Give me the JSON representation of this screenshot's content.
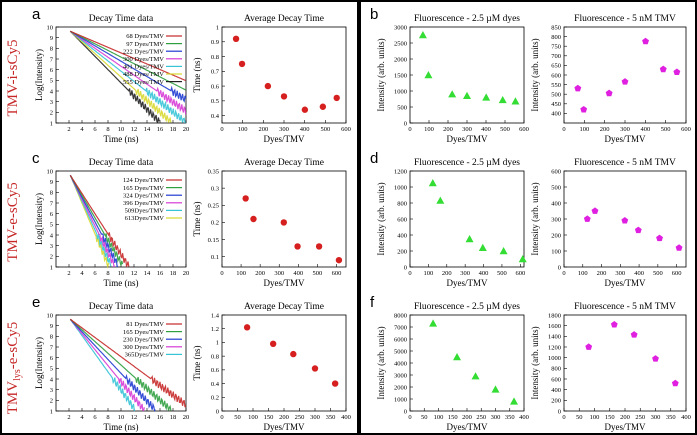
{
  "figure": {
    "row_labels": [
      {
        "main": "TMV-i-sCy5",
        "sub": ""
      },
      {
        "main": "TMV-e-sCy5",
        "sub": ""
      },
      {
        "main": "TMV",
        "sub": "lys",
        "tail": "-e-sCy5"
      }
    ],
    "panel_letters": [
      "a",
      "b",
      "c",
      "d",
      "e",
      "f"
    ]
  },
  "chart_data": [
    {
      "id": "a-decay",
      "type": "line",
      "title": "Decay Time data",
      "xlabel": "Time (ns)",
      "ylabel": "Log(Intensity)",
      "xlim": [
        0,
        20
      ],
      "ylim": [
        1,
        10
      ],
      "xticks": [
        2,
        4,
        6,
        8,
        10,
        12,
        14,
        16,
        18,
        20
      ],
      "yticks": [
        1,
        2,
        3,
        4,
        5,
        6,
        7,
        8,
        9,
        10
      ],
      "series": [
        {
          "name": "68 Dyes/TMV",
          "color": "#c62828",
          "decay_rate": 0.26
        },
        {
          "name": "97 Dyes/TMV",
          "color": "#2e9e3e",
          "decay_rate": 0.31
        },
        {
          "name": "222 Dyes/TMV",
          "color": "#1f3bd1",
          "decay_rate": 0.36
        },
        {
          "name": "300 Dyes/TMV",
          "color": "#d63bd6",
          "decay_rate": 0.42
        },
        {
          "name": "401 Dyes/TMV",
          "color": "#35c3d6",
          "decay_rate": 0.48
        },
        {
          "name": "488 Dyes/TMV",
          "color": "#d8d830",
          "decay_rate": 0.55
        },
        {
          "name": "555 Dyes/TMV",
          "color": "#222222",
          "decay_rate": 0.62
        }
      ]
    },
    {
      "id": "a-avg",
      "type": "scatter",
      "title": "Average Decay Time",
      "xlabel": "Dyes/TMV",
      "ylabel": "Time (ns)",
      "xlim": [
        0,
        600
      ],
      "ylim": [
        0.35,
        1.0
      ],
      "xticks": [
        0,
        100,
        200,
        300,
        400,
        500,
        600
      ],
      "yticks": [
        0.4,
        0.5,
        0.6,
        0.7,
        0.8,
        0.9,
        1
      ],
      "marker": "circle",
      "color": "#d62020",
      "x": [
        68,
        97,
        222,
        300,
        401,
        488,
        555
      ],
      "y": [
        0.92,
        0.75,
        0.6,
        0.53,
        0.44,
        0.46,
        0.52
      ]
    },
    {
      "id": "b-25",
      "type": "scatter",
      "title": "Fluorescence - 2.5 µM dyes",
      "xlabel": "Dyes/TMV",
      "ylabel": "Intensity (arb. units)",
      "xlim": [
        0,
        600
      ],
      "ylim": [
        0,
        3000
      ],
      "xticks": [
        0,
        100,
        200,
        300,
        400,
        500,
        600
      ],
      "yticks": [
        0,
        500,
        1000,
        1500,
        2000,
        2500,
        3000
      ],
      "marker": "triangle",
      "color": "#33dd33",
      "x": [
        68,
        97,
        222,
        300,
        401,
        488,
        555
      ],
      "y": [
        2750,
        1500,
        900,
        850,
        800,
        720,
        680
      ]
    },
    {
      "id": "b-5n",
      "type": "scatter",
      "title": "Fluorescence - 5 nM TMV",
      "xlabel": "Dyes/TMV",
      "ylabel": "Intensity (arb. units)",
      "xlim": [
        0,
        600
      ],
      "ylim": [
        350,
        850
      ],
      "xticks": [
        0,
        100,
        200,
        300,
        400,
        500,
        600
      ],
      "yticks": [
        400,
        450,
        500,
        550,
        600,
        650,
        700,
        750,
        800,
        850
      ],
      "marker": "pentagon",
      "color": "#e020e0",
      "x": [
        68,
        97,
        222,
        300,
        401,
        488,
        555
      ],
      "y": [
        530,
        420,
        505,
        565,
        775,
        630,
        615
      ]
    },
    {
      "id": "c-decay",
      "type": "line",
      "title": "Decay Time data",
      "xlabel": "Time (ns)",
      "ylabel": "Log(Intensity)",
      "xlim": [
        0,
        20
      ],
      "ylim": [
        1,
        10
      ],
      "xticks": [
        2,
        4,
        6,
        8,
        10,
        12,
        14,
        16,
        18,
        20
      ],
      "yticks": [
        1,
        2,
        3,
        4,
        5,
        6,
        7,
        8,
        9,
        10
      ],
      "series": [
        {
          "name": "124 Dyes/TMV",
          "color": "#c62828",
          "decay_rate": 0.95
        },
        {
          "name": "165 Dyes/TMV",
          "color": "#2e9e3e",
          "decay_rate": 1.05
        },
        {
          "name": "324 Dyes/TMV",
          "color": "#1f3bd1",
          "decay_rate": 1.15
        },
        {
          "name": "396 Dyes/TMV",
          "color": "#d63bd6",
          "decay_rate": 1.25
        },
        {
          "name": "509Dyes/TMV",
          "color": "#35c3d6",
          "decay_rate": 1.35
        },
        {
          "name": "613Dyes/TMV",
          "color": "#d8d830",
          "decay_rate": 1.45
        }
      ]
    },
    {
      "id": "c-avg",
      "type": "scatter",
      "title": "Average Decay Time",
      "xlabel": "Dyes/TMV",
      "ylabel": "Time (ns)",
      "xlim": [
        0,
        650
      ],
      "ylim": [
        0.07,
        0.35
      ],
      "xticks": [
        0,
        100,
        200,
        300,
        400,
        500,
        600
      ],
      "yticks": [
        0.1,
        0.15,
        0.2,
        0.25,
        0.3,
        0.35
      ],
      "marker": "circle",
      "color": "#d62020",
      "x": [
        124,
        165,
        324,
        396,
        509,
        613
      ],
      "y": [
        0.27,
        0.21,
        0.2,
        0.13,
        0.13,
        0.09
      ]
    },
    {
      "id": "d-25",
      "type": "scatter",
      "title": "Fluorescence - 2.5 µM dyes",
      "xlabel": "Dyes/TMV",
      "ylabel": "Intensity (arb. units)",
      "xlim": [
        0,
        620
      ],
      "ylim": [
        0,
        1200
      ],
      "xticks": [
        0,
        100,
        200,
        300,
        400,
        500,
        600
      ],
      "yticks": [
        0,
        200,
        400,
        600,
        800,
        1000,
        1200
      ],
      "marker": "triangle",
      "color": "#33dd33",
      "x": [
        124,
        165,
        324,
        396,
        509,
        613
      ],
      "y": [
        1050,
        830,
        350,
        240,
        200,
        100
      ]
    },
    {
      "id": "d-5n",
      "type": "scatter",
      "title": "Fluorescence - 5 nM TMV",
      "xlabel": "Dyes/TMV",
      "ylabel": "Intensity (arb. units)",
      "xlim": [
        0,
        650
      ],
      "ylim": [
        0,
        600
      ],
      "xticks": [
        0,
        100,
        200,
        300,
        400,
        500,
        600
      ],
      "yticks": [
        0,
        100,
        200,
        300,
        400,
        500,
        600
      ],
      "marker": "pentagon",
      "color": "#e020e0",
      "x": [
        124,
        165,
        324,
        396,
        509,
        613
      ],
      "y": [
        300,
        350,
        290,
        230,
        180,
        120
      ]
    },
    {
      "id": "e-decay",
      "type": "line",
      "title": "Decay Time data",
      "xlabel": "Time (ns)",
      "ylabel": "Log(Intensity)",
      "xlim": [
        0,
        20
      ],
      "ylim": [
        1,
        10
      ],
      "xticks": [
        2,
        4,
        6,
        8,
        10,
        12,
        14,
        16,
        18,
        20
      ],
      "yticks": [
        1,
        2,
        3,
        4,
        5,
        6,
        7,
        8,
        9,
        10
      ],
      "series": [
        {
          "name": "81 Dyes/TMV",
          "color": "#c62828",
          "decay_rate": 0.45
        },
        {
          "name": "165 Dyes/TMV",
          "color": "#2e9e3e",
          "decay_rate": 0.55
        },
        {
          "name": "230 Dyes/TMV",
          "color": "#1f3bd1",
          "decay_rate": 0.65
        },
        {
          "name": "300 Dyes/TMV",
          "color": "#d63bd6",
          "decay_rate": 0.75
        },
        {
          "name": "365Dyes/TMV",
          "color": "#35c3d6",
          "decay_rate": 0.85
        }
      ]
    },
    {
      "id": "e-avg",
      "type": "scatter",
      "title": "Average Decay Time",
      "xlabel": "Dyes/TMV",
      "ylabel": "Time (ns)",
      "xlim": [
        0,
        400
      ],
      "ylim": [
        0,
        1.4
      ],
      "xticks": [
        0,
        50,
        100,
        150,
        200,
        250,
        300,
        350,
        400
      ],
      "yticks": [
        0,
        0.2,
        0.4,
        0.6,
        0.8,
        1,
        1.2,
        1.4
      ],
      "marker": "circle",
      "color": "#d62020",
      "x": [
        81,
        165,
        230,
        300,
        365
      ],
      "y": [
        1.22,
        0.98,
        0.83,
        0.62,
        0.4
      ]
    },
    {
      "id": "f-25",
      "type": "scatter",
      "title": "Fluorescence - 2.5 µM dyes",
      "xlabel": "Dyes/TMV",
      "ylabel": "Intensity (arb. units)",
      "xlim": [
        0,
        400
      ],
      "ylim": [
        0,
        8000
      ],
      "xticks": [
        0,
        50,
        100,
        150,
        200,
        250,
        300,
        350,
        400
      ],
      "yticks": [
        0,
        1000,
        2000,
        3000,
        4000,
        5000,
        6000,
        7000,
        8000
      ],
      "marker": "triangle",
      "color": "#33dd33",
      "x": [
        81,
        165,
        230,
        300,
        365
      ],
      "y": [
        7300,
        4500,
        2900,
        1800,
        800
      ]
    },
    {
      "id": "f-5n",
      "type": "scatter",
      "title": "Fluorescence - 5 nM TMV",
      "xlabel": "Dyes/TMV",
      "ylabel": "Intensity (arb. units)",
      "xlim": [
        0,
        400
      ],
      "ylim": [
        0,
        1800
      ],
      "xticks": [
        0,
        50,
        100,
        150,
        200,
        250,
        300,
        350,
        400
      ],
      "yticks": [
        0,
        200,
        400,
        600,
        800,
        1000,
        1200,
        1400,
        1600,
        1800
      ],
      "marker": "pentagon",
      "color": "#e020e0",
      "x": [
        81,
        165,
        230,
        300,
        365
      ],
      "y": [
        1200,
        1620,
        1430,
        980,
        520
      ]
    }
  ]
}
